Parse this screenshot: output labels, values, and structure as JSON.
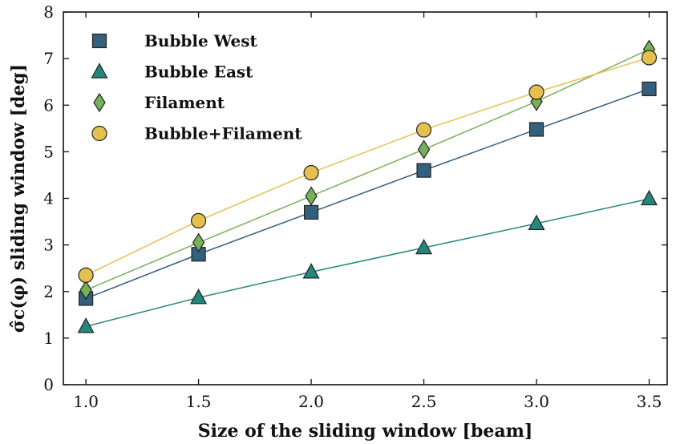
{
  "chart_data": {
    "type": "line",
    "xlabel": "Size of the sliding window [beam]",
    "ylabel": "σ̂c(φ) sliding window [deg]",
    "x": [
      1.0,
      1.5,
      2.0,
      2.5,
      3.0,
      3.5
    ],
    "xticks": [
      "1.0",
      "1.5",
      "2.0",
      "2.5",
      "3.0",
      "3.5"
    ],
    "yticks": [
      "0",
      "1",
      "2",
      "3",
      "4",
      "5",
      "6",
      "7",
      "8"
    ],
    "xlim": [
      0.9,
      3.58
    ],
    "ylim": [
      0,
      8
    ],
    "grid": false,
    "legend_position": "top-left",
    "series": [
      {
        "name": "Bubble West",
        "values": [
          1.85,
          2.8,
          3.7,
          4.6,
          5.48,
          6.35
        ],
        "marker": "square",
        "color": "#34607e"
      },
      {
        "name": "Bubble East",
        "values": [
          1.25,
          1.87,
          2.42,
          2.94,
          3.46,
          3.99
        ],
        "marker": "triangle",
        "color": "#24877b"
      },
      {
        "name": "Filament",
        "values": [
          2.03,
          3.05,
          4.05,
          5.05,
          6.08,
          7.2
        ],
        "marker": "diamond",
        "color": "#78b05a"
      },
      {
        "name": "Bubble+Filament",
        "values": [
          2.35,
          3.52,
          4.55,
          5.47,
          6.28,
          7.02
        ],
        "marker": "circle",
        "color": "#e6c04e"
      }
    ]
  }
}
